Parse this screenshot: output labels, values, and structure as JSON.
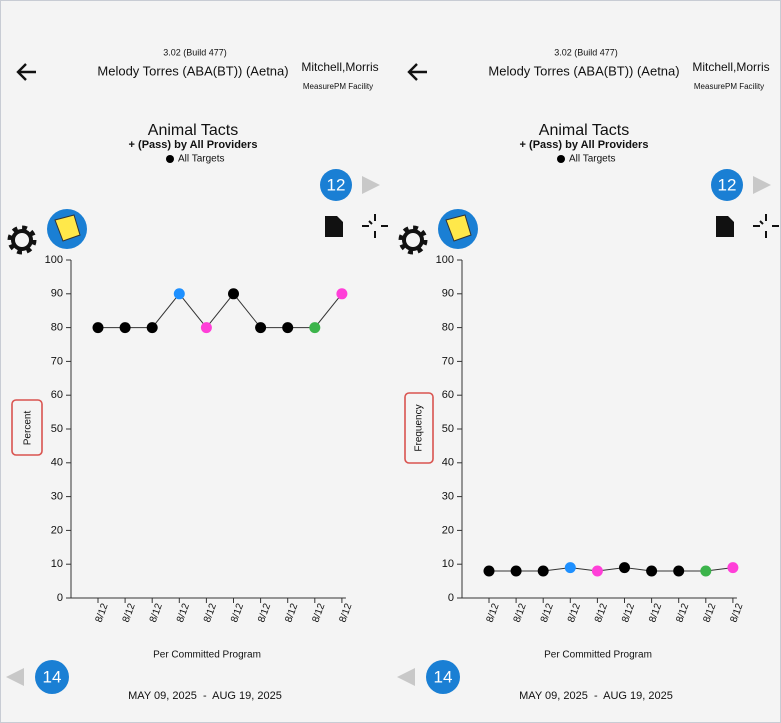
{
  "panels": [
    {
      "version": "3.02 (Build 477)",
      "patient": "Melody Torres (ABA(BT)) (Aetna)",
      "provider": "Mitchell,Morris",
      "facility": "MeasurePM Facility",
      "next_page": "12",
      "prev_page": "14",
      "date_range": "MAY 09, 2025  -  AUG 19, 2025"
    },
    {
      "version": "3.02 (Build 477)",
      "patient": "Melody Torres (ABA(BT)) (Aetna)",
      "provider": "Mitchell,Morris",
      "facility": "MeasurePM Facility",
      "next_page": "12",
      "prev_page": "14",
      "date_range": "MAY 09, 2025  -  AUG 19, 2025"
    }
  ],
  "chart_data": [
    {
      "type": "line",
      "title": "Animal Tacts",
      "subtitle": "+ (Pass) by All Providers",
      "legend": "All Targets",
      "y_label": "Percent",
      "x_label": "Per Committed Program",
      "categories": [
        "8/12",
        "8/12",
        "8/12",
        "8/12",
        "8/12",
        "8/12",
        "8/12",
        "8/12",
        "8/12",
        "8/12"
      ],
      "values": [
        80,
        80,
        80,
        90,
        80,
        90,
        80,
        80,
        80,
        90
      ],
      "colors": [
        "#000000",
        "#000000",
        "#000000",
        "#1e90ff",
        "#ff3fd8",
        "#000000",
        "#000000",
        "#000000",
        "#3cb44b",
        "#ff3fd8"
      ],
      "ylim": [
        0,
        100
      ],
      "yticks": [
        0,
        10,
        20,
        30,
        40,
        50,
        60,
        70,
        80,
        90,
        100
      ]
    },
    {
      "type": "line",
      "title": "Animal Tacts",
      "subtitle": "+ (Pass) by All Providers",
      "legend": "All Targets",
      "y_label": "Frequency",
      "x_label": "Per Committed Program",
      "categories": [
        "8/12",
        "8/12",
        "8/12",
        "8/12",
        "8/12",
        "8/12",
        "8/12",
        "8/12",
        "8/12",
        "8/12"
      ],
      "values": [
        8,
        8,
        8,
        9,
        8,
        9,
        8,
        8,
        8,
        9
      ],
      "colors": [
        "#000000",
        "#000000",
        "#000000",
        "#1e90ff",
        "#ff3fd8",
        "#000000",
        "#000000",
        "#000000",
        "#3cb44b",
        "#ff3fd8"
      ],
      "ylim": [
        0,
        100
      ],
      "yticks": [
        0,
        10,
        20,
        30,
        40,
        50,
        60,
        70,
        80,
        90,
        100
      ]
    }
  ]
}
